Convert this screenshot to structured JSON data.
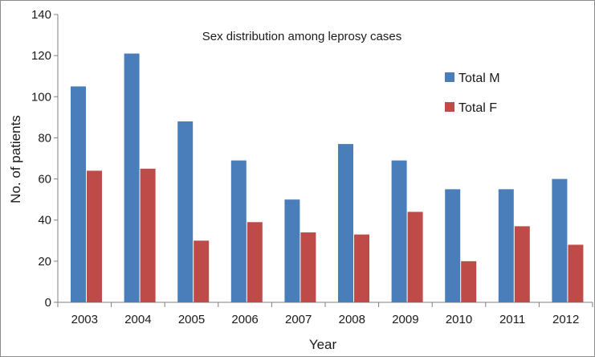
{
  "chart_data": {
    "type": "bar",
    "title": "Sex distribution among leprosy cases",
    "xlabel": "Year",
    "ylabel": "No. of patients",
    "ylim": [
      0,
      140
    ],
    "yticks": [
      0,
      20,
      40,
      60,
      80,
      100,
      120,
      140
    ],
    "categories": [
      "2003",
      "2004",
      "2005",
      "2006",
      "2007",
      "2008",
      "2009",
      "2010",
      "2011",
      "2012"
    ],
    "series": [
      {
        "name": "Total M",
        "color": "#4a7ebb",
        "values": [
          105,
          121,
          88,
          69,
          50,
          77,
          69,
          55,
          55,
          60
        ]
      },
      {
        "name": "Total F",
        "color": "#be4b48",
        "values": [
          64,
          65,
          30,
          39,
          34,
          33,
          44,
          20,
          37,
          28
        ]
      }
    ],
    "legend_position": "top-right",
    "grid": false
  }
}
